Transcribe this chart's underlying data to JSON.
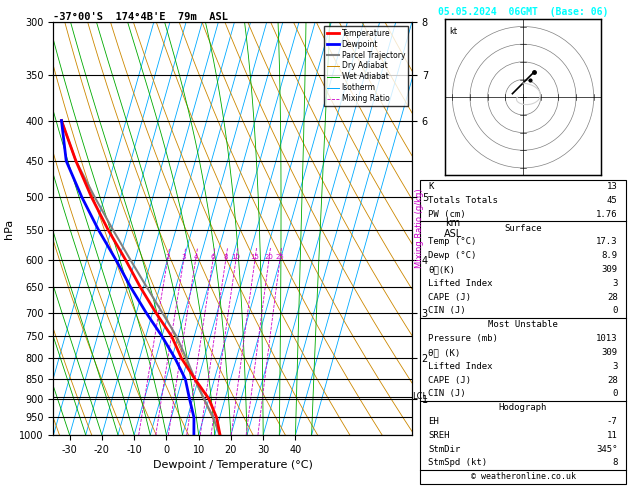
{
  "title_left": "-37°00'S  174°4B'E  79m  ASL",
  "title_right": "05.05.2024  06GMT  (Base: 06)",
  "xlabel": "Dewpoint / Temperature (°C)",
  "ylabel_left": "hPa",
  "pressure_levels": [
    300,
    350,
    400,
    450,
    500,
    550,
    600,
    650,
    700,
    750,
    800,
    850,
    900,
    950,
    1000
  ],
  "temp_ticks": [
    -30,
    -20,
    -10,
    0,
    10,
    20,
    30,
    40
  ],
  "temp_profile_T": [
    17.3,
    14.0,
    10.0,
    4.0,
    -2.0,
    -7.0,
    -14.0,
    -21.0,
    -28.0,
    -36.0,
    -44.0,
    -52.0,
    -60.0
  ],
  "temp_profile_P": [
    1013,
    950,
    900,
    850,
    800,
    750,
    700,
    650,
    600,
    550,
    500,
    450,
    400
  ],
  "dewp_profile_T": [
    8.9,
    7.0,
    4.0,
    1.0,
    -4.0,
    -10.0,
    -17.0,
    -24.0,
    -31.0,
    -39.0,
    -47.0,
    -55.0,
    -60.0
  ],
  "dewp_profile_P": [
    1013,
    950,
    900,
    850,
    800,
    750,
    700,
    650,
    600,
    550,
    500,
    450,
    400
  ],
  "parcel_T": [
    17.3,
    13.0,
    8.5,
    4.0,
    -0.5,
    -5.5,
    -12.0,
    -19.0,
    -26.5,
    -34.5,
    -43.0,
    -52.0,
    -60.0
  ],
  "parcel_P": [
    1013,
    950,
    900,
    850,
    800,
    750,
    700,
    650,
    600,
    550,
    500,
    450,
    400
  ],
  "mixing_ratio_values": [
    2,
    3,
    4,
    6,
    8,
    10,
    15,
    20,
    25
  ],
  "km_ticks": [
    1,
    2,
    3,
    4,
    5,
    6,
    7,
    8
  ],
  "km_pressures": [
    900,
    800,
    700,
    600,
    500,
    400,
    350,
    300
  ],
  "lcl_pressure": 895,
  "info_K": "13",
  "info_TT": "45",
  "info_PW": "1.76",
  "sfc_temp": "17.3",
  "sfc_dewp": "8.9",
  "sfc_theta": "309",
  "sfc_li": "3",
  "sfc_cape": "28",
  "sfc_cin": "0",
  "mu_pressure": "1013",
  "mu_theta": "309",
  "mu_li": "3",
  "mu_cape": "28",
  "mu_cin": "0",
  "hodo_EH": "-7",
  "hodo_SREH": "11",
  "hodo_StmDir": "345°",
  "hodo_StmSpd": "8",
  "footer": "© weatheronline.co.uk",
  "color_temp": "#ff0000",
  "color_dewp": "#0000ff",
  "color_parcel": "#808080",
  "color_dry_adiabat": "#cc8800",
  "color_wet_adiabat": "#00aa00",
  "color_isotherm": "#00aaff",
  "color_mixing": "#cc00cc",
  "skew": 30
}
